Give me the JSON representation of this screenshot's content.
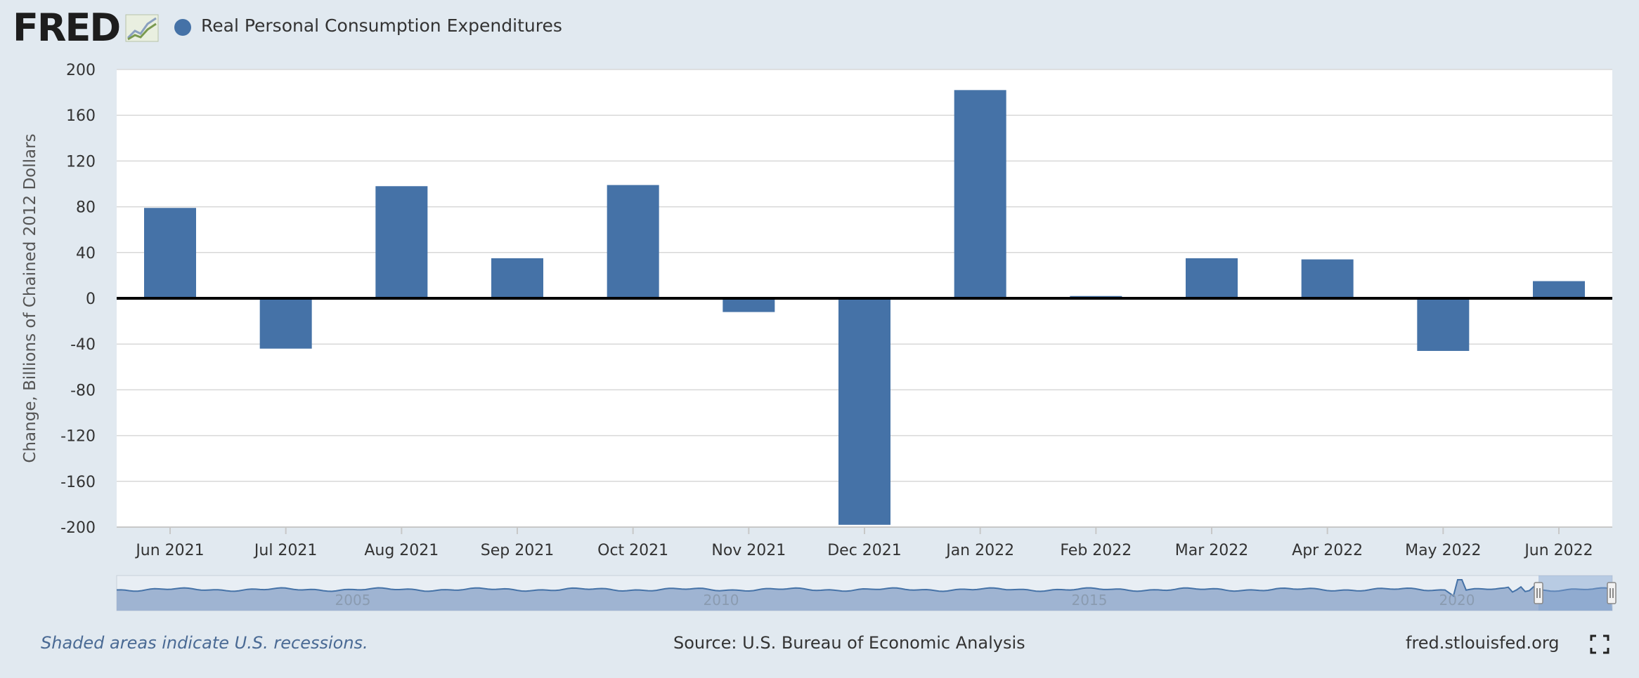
{
  "header": {
    "logo_text": "FRED",
    "legend_label": "Real Personal Consumption Expenditures"
  },
  "colors": {
    "bar": "#4572a7",
    "background": "#e1e9f0",
    "plot": "#ffffff",
    "grid": "#d8d8d8",
    "navigator_fill": "#9fb4d2",
    "navigator_line": "#4572a7"
  },
  "chart_data": {
    "type": "bar",
    "title": "",
    "xlabel": "",
    "ylabel": "Change, Billions of Chained 2012 Dollars",
    "categories": [
      "Jun 2021",
      "Jul 2021",
      "Aug 2021",
      "Sep 2021",
      "Oct 2021",
      "Nov 2021",
      "Dec 2021",
      "Jan 2022",
      "Feb 2022",
      "Mar 2022",
      "Apr 2022",
      "May 2022",
      "Jun 2022"
    ],
    "series": [
      {
        "name": "Real Personal Consumption Expenditures",
        "values": [
          79,
          -44,
          98,
          35,
          99,
          -12,
          -198,
          182,
          2,
          35,
          34,
          -46,
          15
        ]
      }
    ],
    "ylim": [
      -200,
      200
    ],
    "yticks": [
      200,
      160,
      120,
      80,
      40,
      0,
      -40,
      -80,
      -120,
      -160,
      -200
    ],
    "grid": true,
    "legend": "top-left"
  },
  "navigator": {
    "year_labels": [
      "2005",
      "2010",
      "2015",
      "2020"
    ]
  },
  "footer": {
    "recession_note": "Shaded areas indicate U.S. recessions.",
    "source": "Source: U.S. Bureau of Economic Analysis",
    "site": "fred.stlouisfed.org"
  }
}
